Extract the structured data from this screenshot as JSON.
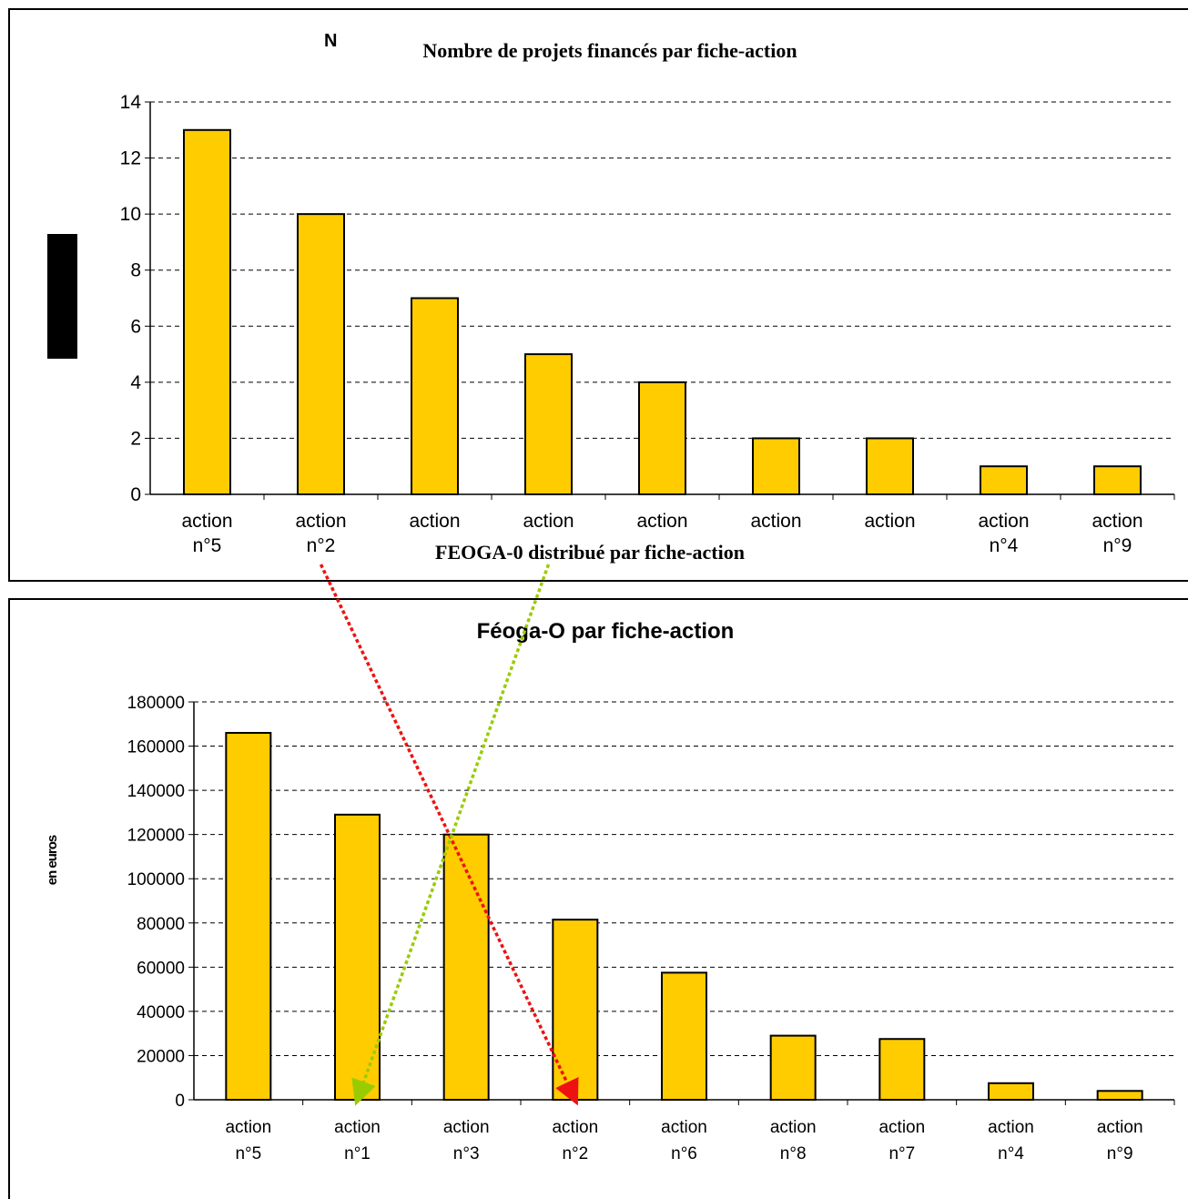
{
  "chart_data": [
    {
      "type": "bar",
      "title": "Nombre de projets financés par fiche-action",
      "title_prefix": "N",
      "overlay_text": "FEOGA-0 distribué par fiche-action",
      "categories": [
        [
          "action",
          "n°5"
        ],
        [
          "action",
          "n°2"
        ],
        [
          "action",
          ""
        ],
        [
          "action",
          ""
        ],
        [
          "action",
          ""
        ],
        [
          "action",
          ""
        ],
        [
          "action",
          ""
        ],
        [
          "action",
          "n°4"
        ],
        [
          "action",
          "n°9"
        ]
      ],
      "values": [
        13,
        10,
        7,
        5,
        4,
        2,
        2,
        1,
        1
      ],
      "ylim": [
        0,
        14
      ],
      "yticks": [
        0,
        2,
        4,
        6,
        8,
        10,
        12,
        14
      ],
      "grid": true,
      "bar_color": "#FFCC00"
    },
    {
      "type": "bar",
      "title": "Féoga-O par fiche-action",
      "ylabel": "en euros",
      "categories": [
        [
          "action",
          "n°5"
        ],
        [
          "action",
          "n°1"
        ],
        [
          "action",
          "n°3"
        ],
        [
          "action",
          "n°2"
        ],
        [
          "action",
          "n°6"
        ],
        [
          "action",
          "n°8"
        ],
        [
          "action",
          "n°7"
        ],
        [
          "action",
          "n°4"
        ],
        [
          "action",
          "n°9"
        ]
      ],
      "values": [
        166000,
        129000,
        120000,
        81500,
        57500,
        29000,
        27500,
        7500,
        4000
      ],
      "ylim": [
        0,
        180000
      ],
      "yticks": [
        0,
        20000,
        40000,
        60000,
        80000,
        100000,
        120000,
        140000,
        160000,
        180000
      ],
      "grid": true,
      "bar_color": "#FFCC00"
    }
  ],
  "arrows": [
    {
      "from_chart": 0,
      "from_category": 1,
      "to_chart": 1,
      "to_category": 3,
      "color": "#EE1111"
    },
    {
      "from_chart": 0,
      "from_category": 3,
      "to_chart": 1,
      "to_category": 1,
      "color": "#99CC00"
    }
  ]
}
